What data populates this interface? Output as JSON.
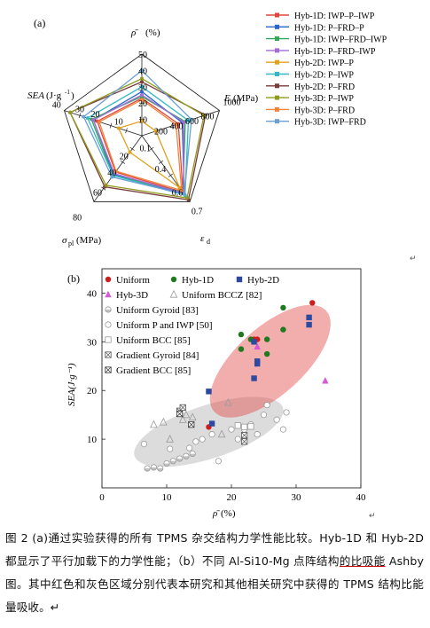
{
  "figure": {
    "panel_a_label": "(a)",
    "panel_b_label": "(b)",
    "return_mark": "↵"
  },
  "radar": {
    "axes": [
      {
        "name": "rho",
        "label": "ρ̄ (%)",
        "max": 50,
        "ticks": [
          "10",
          "20",
          "30",
          "40",
          "50"
        ]
      },
      {
        "name": "E",
        "label": "E(MPa)",
        "max": 1000,
        "ticks": [
          "200",
          "400",
          "600",
          "800",
          "1000"
        ]
      },
      {
        "name": "eps",
        "label": "εd",
        "max": 0.7,
        "ticks": [
          "0.1",
          "0.4",
          "0.6",
          "0.7"
        ]
      },
      {
        "name": "sigma",
        "label": "σpl (MPa)",
        "max": 80,
        "ticks": [
          "20",
          "40",
          "60",
          "80"
        ]
      },
      {
        "name": "SEA",
        "label": "SEA(J·g⁻¹)",
        "max": 40,
        "ticks": [
          "10",
          "20",
          "30",
          "40"
        ]
      }
    ],
    "ticks_display": {
      "rho": [
        "10",
        "20",
        "30",
        "40",
        "50"
      ],
      "E": [
        "200",
        "400",
        "600",
        "800",
        "1000"
      ],
      "eps": [
        "0.1",
        "0.4",
        "0.6",
        "0.7"
      ],
      "sigma": [
        "20",
        "40",
        "60",
        "80"
      ],
      "SEA": [
        "10",
        "20",
        "30",
        "40"
      ]
    },
    "title_labels": {
      "rho": "(%)",
      "E": "(MPa)",
      "eps": "d",
      "sigma": "pl",
      "sigma_unit": "(MPa)",
      "sea_unit": "(J·g",
      "sea_exp": "-1",
      "sea_close": ")"
    },
    "series": [
      {
        "name": "Hyb-1D: IWP–P–IWP",
        "color": "#e0463f",
        "marker": "square",
        "values": [
          23,
          470,
          0.6,
          44,
          23
        ]
      },
      {
        "name": "Hyb-1D: P–FRD–P",
        "color": "#2a66c9",
        "marker": "circle",
        "values": [
          27,
          520,
          0.62,
          47,
          25
        ]
      },
      {
        "name": "Hyb-1D: IWP–FRD–IWP",
        "color": "#33a65a",
        "marker": "triangle",
        "values": [
          24,
          560,
          0.6,
          48,
          26
        ]
      },
      {
        "name": "Hyb-1D: P–FRD–IWP",
        "color": "#a56cd6",
        "marker": "triangle-down",
        "values": [
          25,
          540,
          0.61,
          46,
          25
        ]
      },
      {
        "name": "Hyb-2D: IWP–P",
        "color": "#e0a11b",
        "marker": "diamond",
        "values": [
          9,
          180,
          0.55,
          20,
          12
        ]
      },
      {
        "name": "Hyb-2D: P–IWP",
        "color": "#33b8c4",
        "marker": "triangle-left",
        "values": [
          30,
          600,
          0.63,
          48,
          28
        ]
      },
      {
        "name": "Hyb-2D: P–FRD",
        "color": "#7a3b3b",
        "marker": "triangle-right",
        "values": [
          33,
          820,
          0.68,
          62,
          37
        ]
      },
      {
        "name": "Hyb-3D: P–IWP",
        "color": "#8f9a1c",
        "marker": "hexagon",
        "values": [
          35,
          800,
          0.66,
          60,
          37
        ]
      },
      {
        "name": "Hyb-3D: P–FRD",
        "color": "#f0853a",
        "marker": "star",
        "values": [
          22,
          440,
          0.58,
          43,
          22
        ]
      },
      {
        "name": "Hyb-3D: IWP–FRD",
        "color": "#6a9fd4",
        "marker": "circle",
        "values": [
          40,
          640,
          0.62,
          50,
          30
        ]
      }
    ]
  },
  "chart_data": {
    "type": "scatter",
    "xlabel": "ρ̄ (%)",
    "ylabel": "SEA(J·g⁻¹)",
    "xlim": [
      0,
      40
    ],
    "ylim": [
      0,
      45
    ],
    "xticks": [
      "0",
      "10",
      "20",
      "30",
      "40"
    ],
    "yticks": [
      "10",
      "20",
      "30",
      "40"
    ],
    "legend": [
      {
        "name": "Uniform",
        "marker": "circle-filled",
        "color": "#d21b1b"
      },
      {
        "name": "Hyb-1D",
        "marker": "circle-filled",
        "color": "#1f7a1f"
      },
      {
        "name": "Hyb-2D",
        "marker": "square-filled",
        "color": "#2e4a9e"
      },
      {
        "name": "Hyb-3D",
        "marker": "triangle-filled",
        "color": "#d65ad8"
      },
      {
        "name": "Uniform BCCZ [82]",
        "marker": "triangle-open",
        "color": "#9a9a9a"
      },
      {
        "name": "Uniform Gyroid [83]",
        "marker": "circle-half",
        "color": "#9a9a9a"
      },
      {
        "name": "Uniform P and IWP [50]",
        "marker": "circle-open",
        "color": "#9a9a9a"
      },
      {
        "name": "Uniform BCC [85]",
        "marker": "square-open",
        "color": "#9a9a9a"
      },
      {
        "name": "Gradient Gyroid [84]",
        "marker": "square-x",
        "color": "#555555"
      },
      {
        "name": "Gradient BCC [85]",
        "marker": "square-x-dark",
        "color": "#333333"
      }
    ],
    "series": [
      {
        "name": "Uniform",
        "points": [
          [
            16.5,
            12.5
          ],
          [
            23.5,
            30.5
          ],
          [
            24,
            30.5
          ],
          [
            32.5,
            38
          ]
        ]
      },
      {
        "name": "Hyb-1D",
        "points": [
          [
            21.5,
            31.5
          ],
          [
            21.5,
            28.5
          ],
          [
            23,
            30.5
          ],
          [
            24,
            26
          ],
          [
            25.5,
            30.5
          ],
          [
            25.5,
            27.5
          ],
          [
            28,
            32.5
          ],
          [
            28,
            37
          ]
        ]
      },
      {
        "name": "Hyb-2D",
        "points": [
          [
            16.5,
            19.8
          ],
          [
            17,
            13.2
          ],
          [
            23.5,
            30
          ],
          [
            23.5,
            22.5
          ],
          [
            24,
            25.5
          ],
          [
            24,
            26
          ],
          [
            32,
            33.5
          ],
          [
            32,
            35
          ]
        ]
      },
      {
        "name": "Hyb-3D",
        "points": [
          [
            24,
            29
          ],
          [
            34.5,
            22
          ]
        ]
      },
      {
        "name": "Uniform BCCZ [82]",
        "points": [
          [
            8,
            13
          ],
          [
            9.5,
            13.5
          ],
          [
            10.5,
            10
          ],
          [
            12.5,
            14
          ],
          [
            13,
            15
          ],
          [
            14,
            14.5
          ],
          [
            18.5,
            11
          ],
          [
            19.5,
            17.5
          ]
        ]
      },
      {
        "name": "Uniform Gyroid [83]",
        "points": [
          [
            7,
            4
          ],
          [
            8,
            4.2
          ],
          [
            9,
            4
          ],
          [
            10,
            5
          ],
          [
            11,
            5.5
          ],
          [
            12,
            6
          ],
          [
            13,
            6.5
          ],
          [
            14,
            7
          ]
        ]
      },
      {
        "name": "Uniform P and IWP [50]",
        "points": [
          [
            6.5,
            9
          ],
          [
            10.5,
            8
          ],
          [
            13.5,
            8.2
          ],
          [
            14.5,
            9.5
          ],
          [
            15.5,
            10
          ],
          [
            17,
            11
          ],
          [
            18,
            5.5
          ],
          [
            20,
            12
          ],
          [
            21,
            10
          ],
          [
            22,
            12
          ],
          [
            23,
            13
          ],
          [
            24,
            11
          ],
          [
            25,
            15
          ],
          [
            25.5,
            17
          ],
          [
            27,
            14
          ],
          [
            28,
            12
          ],
          [
            28.5,
            15.5
          ]
        ]
      },
      {
        "name": "Uniform BCC [85]",
        "points": [
          [
            21,
            12.8
          ],
          [
            22,
            12.5
          ],
          [
            23,
            12.6
          ]
        ]
      },
      {
        "name": "Gradient Gyroid [84]",
        "points": [
          [
            12,
            15.8
          ],
          [
            12.5,
            16.5
          ],
          [
            22,
            10.8
          ],
          [
            22,
            9.5
          ]
        ]
      },
      {
        "name": "Gradient BCC [85]",
        "points": [
          [
            12,
            15.2
          ],
          [
            13.8,
            13
          ]
        ]
      }
    ],
    "regions": [
      {
        "name": "this-study",
        "color": "#e34a4a"
      },
      {
        "name": "other-studies",
        "color": "#9a9a9a"
      }
    ]
  },
  "caption": {
    "part1": "图 2 (a)通过实验获得的所有 TPMS 杂交结构力学性能比较。Hyb-1D 和 Hyb-2D 都显示了平行加载下的力学性能；（b）不同 Al-Si10-Mg 点阵结构",
    "part_red": "的比吸能",
    "part2": " Ashby 图。其中红色和灰色区域分别代表本研究和其他相关研究中获得的",
    "part_last": "TPMS 结构比能量吸收。↵"
  }
}
